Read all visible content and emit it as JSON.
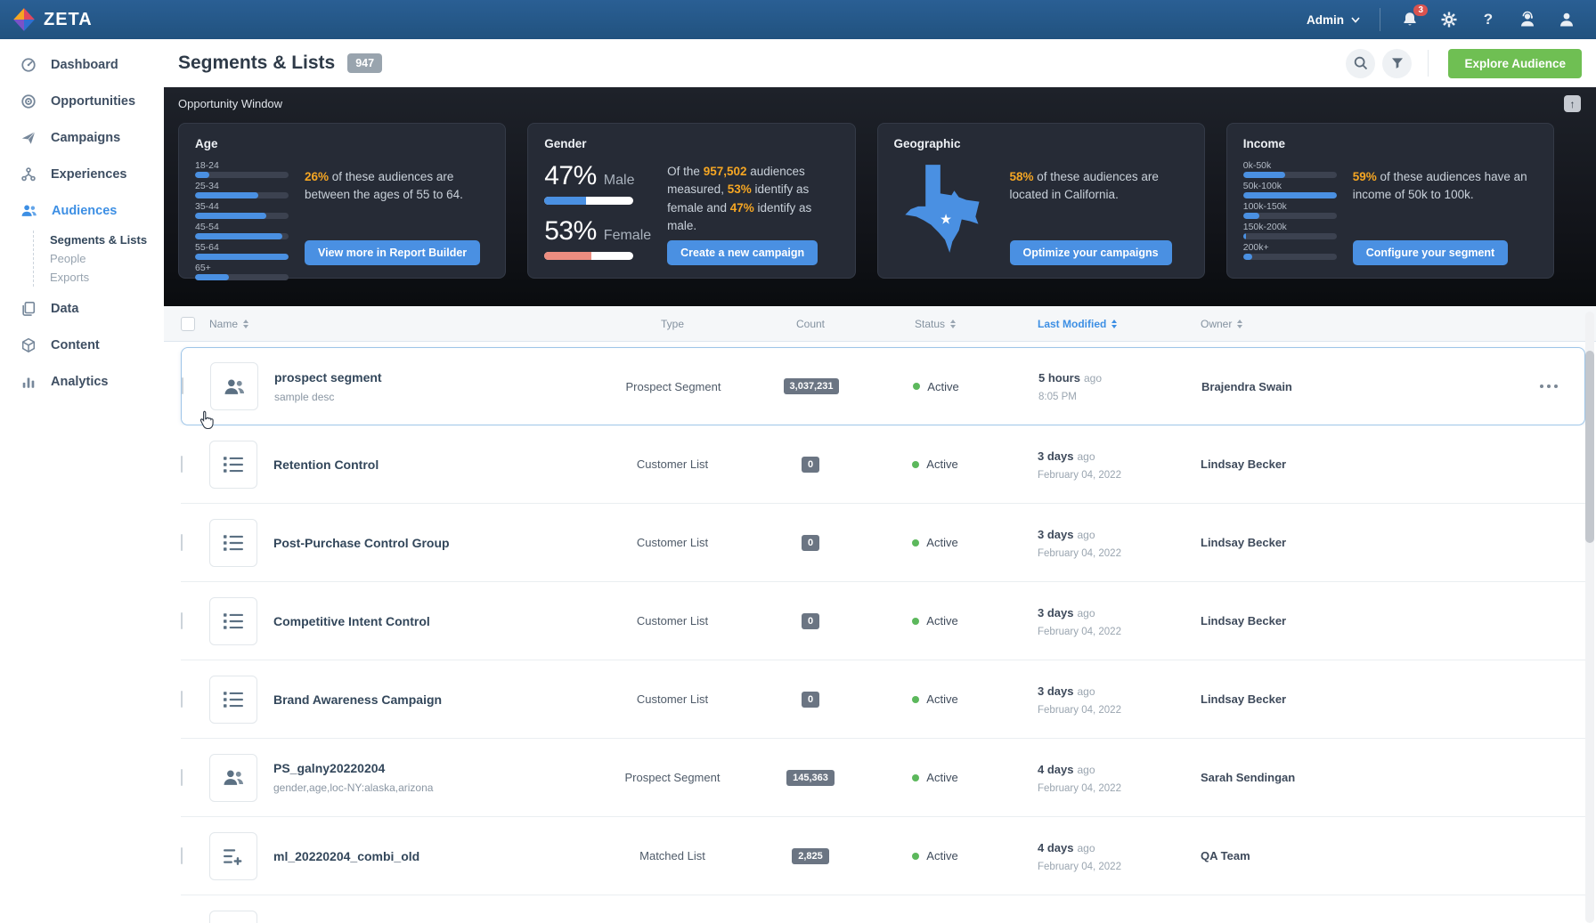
{
  "topnav": {
    "brand": "ZETA",
    "admin_label": "Admin",
    "notification_count": "3"
  },
  "sidebar": {
    "items": [
      {
        "label": "Dashboard",
        "icon": "dashboard-icon"
      },
      {
        "label": "Opportunities",
        "icon": "opportunities-icon"
      },
      {
        "label": "Campaigns",
        "icon": "campaigns-icon"
      },
      {
        "label": "Experiences",
        "icon": "experiences-icon"
      },
      {
        "label": "Audiences",
        "icon": "audiences-icon",
        "active": true
      },
      {
        "label": "Data",
        "icon": "data-icon"
      },
      {
        "label": "Content",
        "icon": "content-icon"
      },
      {
        "label": "Analytics",
        "icon": "analytics-icon"
      }
    ],
    "audiences_children": [
      {
        "label": "Segments & Lists",
        "active": true
      },
      {
        "label": "People",
        "active": false
      },
      {
        "label": "Exports",
        "active": false
      }
    ]
  },
  "header": {
    "title": "Segments & Lists",
    "badge": "947",
    "explore_button": "Explore Audience"
  },
  "opportunity": {
    "label": "Opportunity Window",
    "collapse_icon": "↑",
    "age": {
      "title": "Age",
      "bars": [
        {
          "label": "18-24",
          "pct": 15
        },
        {
          "label": "25-34",
          "pct": 68
        },
        {
          "label": "35-44",
          "pct": 76
        },
        {
          "label": "45-54",
          "pct": 93
        },
        {
          "label": "55-64",
          "pct": 100
        },
        {
          "label": "65+",
          "pct": 36
        }
      ],
      "description": [
        {
          "t": "26%",
          "h": true
        },
        {
          "t": " of these audiences are between the ages of 55 to 64."
        }
      ],
      "button": "View more in Report Builder"
    },
    "gender": {
      "title": "Gender",
      "male_display": "47%",
      "male_label": "Male",
      "male_value": 47,
      "female_display": "53%",
      "female_label": "Female",
      "female_value": 53,
      "description": [
        {
          "t": "Of the "
        },
        {
          "t": "957,502",
          "h": true
        },
        {
          "t": " audiences measured, "
        },
        {
          "t": "53%",
          "h": true
        },
        {
          "t": " identify as female and "
        },
        {
          "t": "47%",
          "h": true
        },
        {
          "t": " identify as male."
        }
      ],
      "button": "Create a new campaign"
    },
    "geographic": {
      "title": "Geographic",
      "star": "★",
      "description": [
        {
          "t": "58%",
          "h": true
        },
        {
          "t": " of these audiences are located in California."
        }
      ],
      "button": "Optimize your campaigns"
    },
    "income": {
      "title": "Income",
      "bars": [
        {
          "label": "0k-50k",
          "pct": 45
        },
        {
          "label": "50k-100k",
          "pct": 100
        },
        {
          "label": "100k-150k",
          "pct": 17
        },
        {
          "label": "150k-200k",
          "pct": 3
        },
        {
          "label": "200k+",
          "pct": 10
        }
      ],
      "description": [
        {
          "t": "59%",
          "h": true
        },
        {
          "t": " of these audiences have an income of 50k to 100k."
        }
      ],
      "button": "Configure your segment"
    }
  },
  "table": {
    "columns": {
      "name": "Name",
      "type": "Type",
      "count": "Count",
      "status": "Status",
      "last_modified": "Last Modified",
      "owner": "Owner"
    },
    "rows": [
      {
        "name": "prospect segment",
        "desc": "sample desc",
        "icon": "people-icon",
        "type": "Prospect Segment",
        "count": "3,037,231",
        "status": "Active",
        "modified_rel": "5 hours",
        "modified_ago": "ago",
        "modified_detail": "8:05 PM",
        "owner": "Brajendra Swain"
      },
      {
        "name": "Retention Control",
        "desc": "",
        "icon": "list-icon",
        "type": "Customer List",
        "count": "0",
        "status": "Active",
        "modified_rel": "3 days",
        "modified_ago": "ago",
        "modified_detail": "February 04, 2022",
        "owner": "Lindsay Becker"
      },
      {
        "name": "Post-Purchase Control Group",
        "desc": "",
        "icon": "list-icon",
        "type": "Customer List",
        "count": "0",
        "status": "Active",
        "modified_rel": "3 days",
        "modified_ago": "ago",
        "modified_detail": "February 04, 2022",
        "owner": "Lindsay Becker"
      },
      {
        "name": "Competitive Intent Control",
        "desc": "",
        "icon": "list-icon",
        "type": "Customer List",
        "count": "0",
        "status": "Active",
        "modified_rel": "3 days",
        "modified_ago": "ago",
        "modified_detail": "February 04, 2022",
        "owner": "Lindsay Becker"
      },
      {
        "name": "Brand Awareness Campaign",
        "desc": "",
        "icon": "list-icon",
        "type": "Customer List",
        "count": "0",
        "status": "Active",
        "modified_rel": "3 days",
        "modified_ago": "ago",
        "modified_detail": "February 04, 2022",
        "owner": "Lindsay Becker"
      },
      {
        "name": "PS_galny20220204",
        "desc": "gender,age,loc-NY:alaska,arizona",
        "icon": "people-icon",
        "type": "Prospect Segment",
        "count": "145,363",
        "status": "Active",
        "modified_rel": "4 days",
        "modified_ago": "ago",
        "modified_detail": "February 04, 2022",
        "owner": "Sarah Sendingan"
      },
      {
        "name": "ml_20220204_combi_old",
        "desc": "",
        "icon": "list-plus-icon",
        "type": "Matched List",
        "count": "2,825",
        "status": "Active",
        "modified_rel": "4 days",
        "modified_ago": "ago",
        "modified_detail": "February 04, 2022",
        "owner": "QA Team"
      }
    ]
  },
  "colors": {
    "topnav_blue": "#245687",
    "accent_blue": "#4a90e2",
    "highlight_orange": "#f5a623",
    "explore_green": "#6fbf53",
    "female_salmon": "#ec8d80",
    "status_green": "#5cb85c",
    "sidebar_active_blue": "#3d8fe4",
    "count_pill_gray": "#6b7583"
  }
}
